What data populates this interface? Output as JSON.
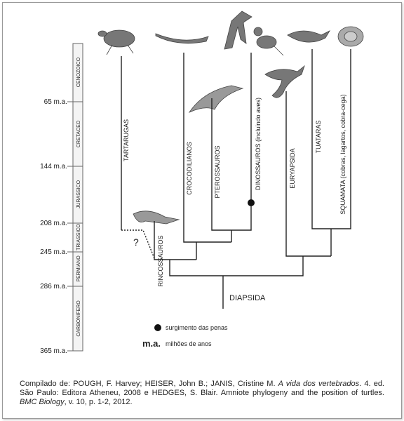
{
  "timescale": {
    "ages": [
      "65 m.a.",
      "144 m.a.",
      "208 m.a.",
      "245 m.a.",
      "286 m.a.",
      "365 m.a."
    ],
    "periods": [
      "CENOZOICO",
      "CRETACEO",
      "JURASSICO",
      "TRIASSICO",
      "PERMIANO",
      "CARBONIFERO"
    ]
  },
  "taxa": [
    "TARTARUGAS",
    "CROCODILIANOS",
    "PTEROSSAUROS",
    "DINOSSAUROS (incluindo aves)",
    "EURYAPSIDA",
    "TUATARAS",
    "SQUAMATA (cobras, lagartos, cobra-cega)",
    "RINCOSSAUROS"
  ],
  "uncertain": "?",
  "clade": "DIAPSIDA",
  "legend": {
    "dot": "surgimento das penas",
    "abbr": "m.a.",
    "abbr_text": "milhões de anos"
  },
  "caption": [
    "Compilado de: POUGH, F. Harvey; HEISER, John B.; JANIS, Cristine M. ",
    "A vida dos vertebrados",
    ". 4. ed. São Paulo: Editora Atheneu, 2008 e HEDGES, S. Blair. Amniote phylogeny and the position of turtles. ",
    "BMC Biology",
    ", v. 10, p. 1-2, 2012."
  ]
}
